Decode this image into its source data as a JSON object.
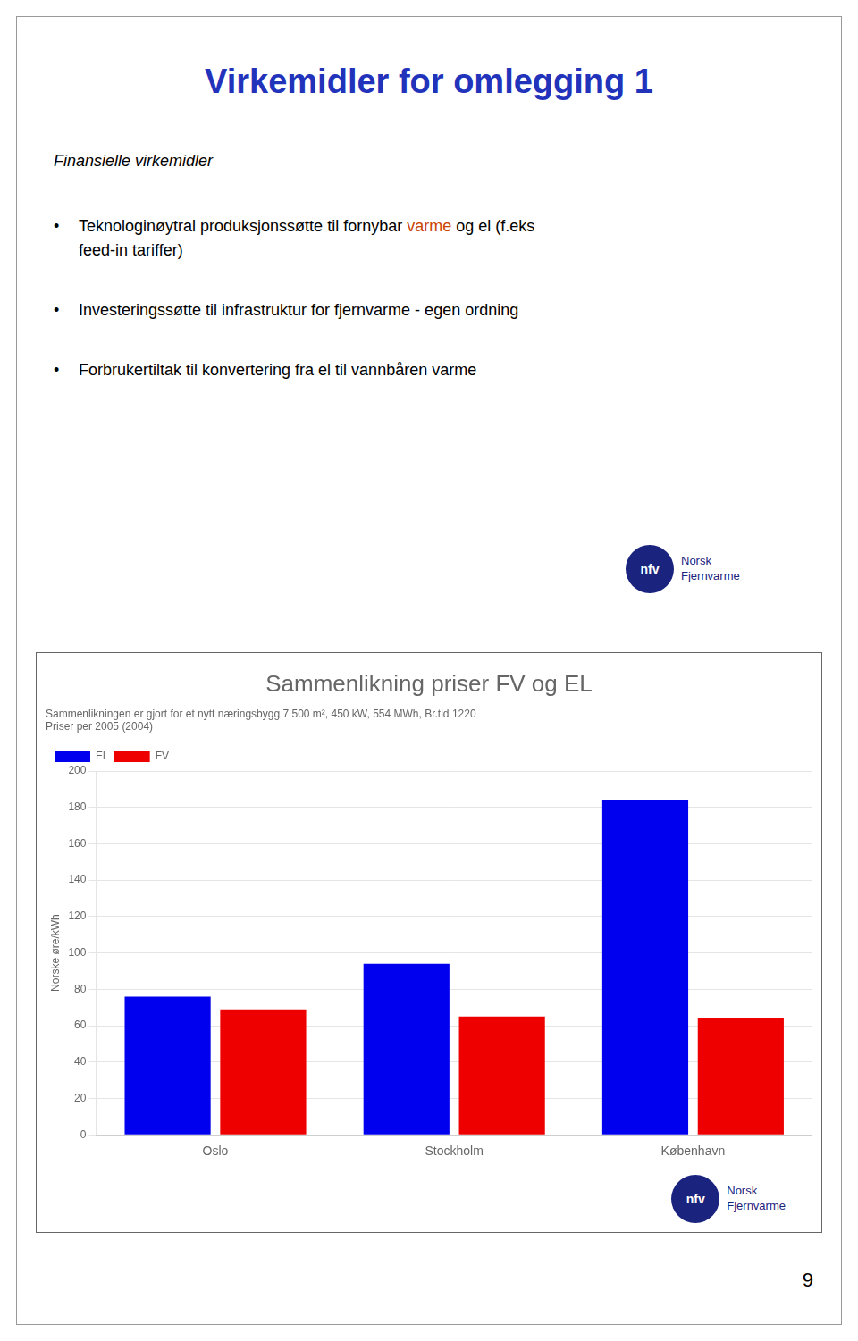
{
  "page_title": "Virkemidler for omlegging 1",
  "page_title_color": "#2233bb",
  "page_subtitle": "Finansielle virkemidler",
  "bullets": [
    [
      {
        "text": "Teknologinøytral produksjonssøtte til fornybar "
      },
      {
        "text": "varme",
        "color": "#cc4400"
      },
      {
        "text": " og el (f.eks\nfeed-in tariffer)"
      }
    ],
    [
      {
        "text": "Investeringssøtte til infrastruktur for fjernvarme - egen ordning"
      }
    ],
    [
      {
        "text": "Forbrukertiltak til konvertering fra el til vannbåren varme"
      }
    ]
  ],
  "logo_texts": [
    "nfv",
    "Norsk",
    "Fjernvarme"
  ],
  "page_number": "9",
  "chart_data": {
    "type": "bar",
    "title": "Sammenlikning priser FV og EL",
    "subtitle": [
      "Sammenlikningen er gjort for et nytt næringsbygg 7 500 m², 450 kW, 554 MWh, Br.tid 1220",
      "Priser per 2005 (2004)"
    ],
    "categories": [
      "Oslo",
      "Stockholm",
      "København"
    ],
    "series": [
      {
        "name": "El",
        "color": "#0000ee",
        "values": [
          76,
          94,
          184
        ]
      },
      {
        "name": "FV",
        "color": "#ee0000",
        "values": [
          69,
          65,
          64
        ]
      }
    ],
    "ylabel": "Norske øre/kWh",
    "ylim": [
      0,
      200
    ],
    "yticks": [
      0,
      20,
      40,
      60,
      80,
      100,
      120,
      140,
      160,
      180,
      200
    ],
    "grid": true,
    "legend": "upper left"
  }
}
